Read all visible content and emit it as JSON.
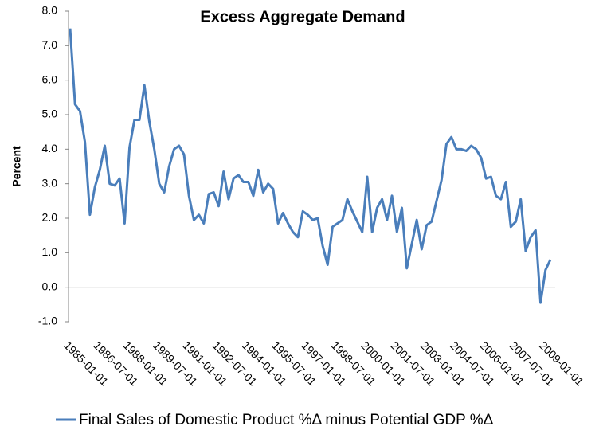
{
  "chart_data": {
    "type": "line",
    "title": "Excess Aggregate Demand",
    "y_label": "Percent",
    "categories": [
      "1985-01-01",
      null,
      null,
      null,
      null,
      null,
      "1986-07-01",
      null,
      null,
      null,
      null,
      null,
      "1988-01-01",
      null,
      null,
      null,
      null,
      null,
      "1989-07-01",
      null,
      null,
      null,
      null,
      null,
      "1991-01-01",
      null,
      null,
      null,
      null,
      null,
      "1992-07-01",
      null,
      null,
      null,
      null,
      null,
      "1994-01-01",
      null,
      null,
      null,
      null,
      null,
      "1995-07-01",
      null,
      null,
      null,
      null,
      null,
      "1997-01-01",
      null,
      null,
      null,
      null,
      null,
      "1998-07-01",
      null,
      null,
      null,
      null,
      null,
      "2000-01-01",
      null,
      null,
      null,
      null,
      null,
      "2001-07-01",
      null,
      null,
      null,
      null,
      null,
      "2003-01-01",
      null,
      null,
      null,
      null,
      null,
      "2004-07-01",
      null,
      null,
      null,
      null,
      null,
      "2006-01-01",
      null,
      null,
      null,
      null,
      null,
      "2007-07-01",
      null,
      null,
      null,
      null,
      null,
      "2009-01-01",
      null
    ],
    "series": [
      {
        "name": "Final Sales of Domestic Product %Δ minus Potential GDP %Δ",
        "color": "#4a7ebb",
        "values": [
          7.5,
          5.3,
          5.1,
          4.2,
          2.1,
          2.9,
          3.4,
          4.1,
          3.0,
          2.95,
          3.15,
          1.85,
          4.05,
          4.85,
          4.85,
          5.85,
          4.8,
          4.0,
          3.0,
          2.75,
          3.5,
          4.0,
          4.1,
          3.85,
          2.65,
          1.95,
          2.1,
          1.85,
          2.7,
          2.75,
          2.35,
          3.35,
          2.55,
          3.15,
          3.25,
          3.05,
          3.05,
          2.65,
          3.4,
          2.75,
          3.0,
          2.85,
          1.85,
          2.15,
          1.85,
          1.6,
          1.45,
          2.2,
          2.1,
          1.95,
          2.0,
          1.2,
          0.65,
          1.75,
          1.85,
          1.95,
          2.55,
          2.2,
          1.9,
          1.6,
          3.2,
          1.6,
          2.3,
          2.55,
          1.95,
          2.65,
          1.6,
          2.3,
          0.55,
          1.25,
          1.95,
          1.1,
          1.8,
          1.9,
          2.5,
          3.1,
          4.15,
          4.35,
          4.0,
          4.0,
          3.95,
          4.1,
          4.0,
          3.75,
          3.15,
          3.2,
          2.65,
          2.55,
          3.05,
          1.75,
          1.9,
          2.55,
          1.05,
          1.45,
          1.65,
          -0.45,
          0.5,
          0.8
        ]
      }
    ],
    "ylim": [
      -1,
      8
    ],
    "yticks": [
      {
        "value": -1,
        "label": "-1.0"
      },
      {
        "value": 0,
        "label": "0.0"
      },
      {
        "value": 1,
        "label": "1.0"
      },
      {
        "value": 2,
        "label": "2.0"
      },
      {
        "value": 3,
        "label": "3.0"
      },
      {
        "value": 4,
        "label": "4.0"
      },
      {
        "value": 5,
        "label": "5.0"
      },
      {
        "value": 6,
        "label": "6.0"
      },
      {
        "value": 7,
        "label": "7.0"
      },
      {
        "value": 8,
        "label": "8.0"
      }
    ],
    "grid": false
  }
}
